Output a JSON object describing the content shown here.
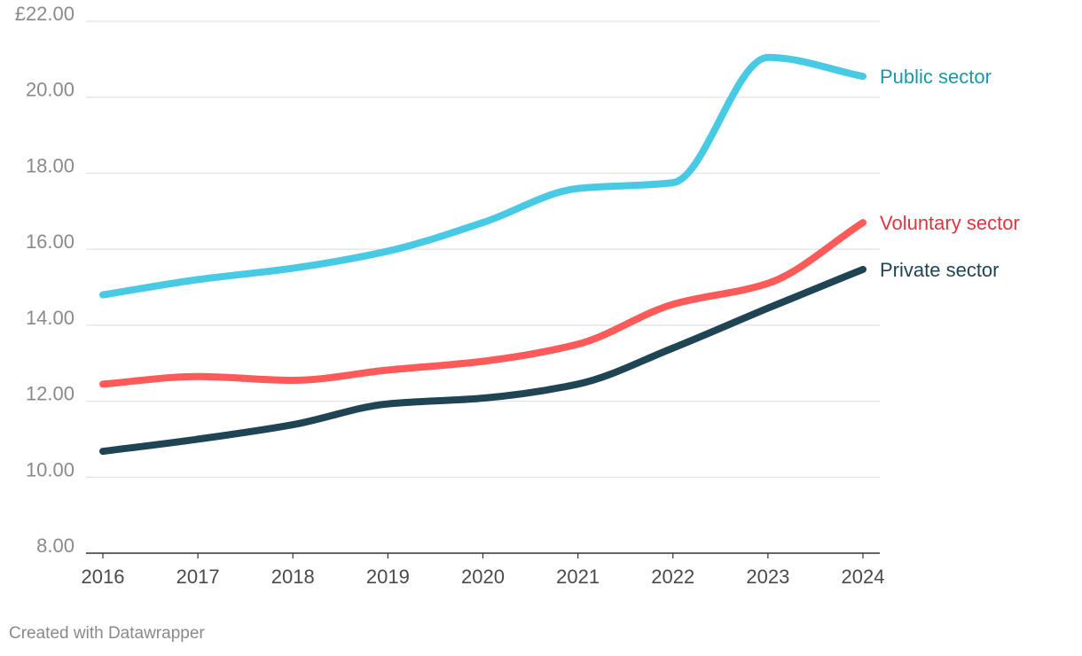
{
  "chart_data": {
    "type": "line",
    "title": "",
    "xlabel": "",
    "ylabel": "",
    "categories": [
      "2016",
      "2017",
      "2018",
      "2019",
      "2020",
      "2021",
      "2022",
      "2023",
      "2024"
    ],
    "y_ticks": [
      "8.00",
      "10.00",
      "12.00",
      "14.00",
      "16.00",
      "18.00",
      "20.00",
      "£22.00"
    ],
    "ylim": [
      8,
      22
    ],
    "grid": true,
    "series": [
      {
        "name": "Public sector",
        "color": "#48cae4",
        "label_color": "#1b98a8",
        "values": [
          14.8,
          15.2,
          15.5,
          15.95,
          16.7,
          17.6,
          17.75,
          21.05,
          20.55
        ]
      },
      {
        "name": "Voluntary sector",
        "color": "#ff5a5a",
        "label_color": "#e0353f",
        "values": [
          12.45,
          12.65,
          12.55,
          12.82,
          13.05,
          13.5,
          14.55,
          15.1,
          16.7
        ]
      },
      {
        "name": "Private sector",
        "color": "#1f4454",
        "label_color": "#1f4454",
        "values": [
          10.68,
          11.0,
          11.38,
          11.93,
          12.08,
          12.45,
          13.4,
          14.45,
          15.47
        ]
      }
    ]
  },
  "footer": {
    "credit": "Created with Datawrapper"
  }
}
